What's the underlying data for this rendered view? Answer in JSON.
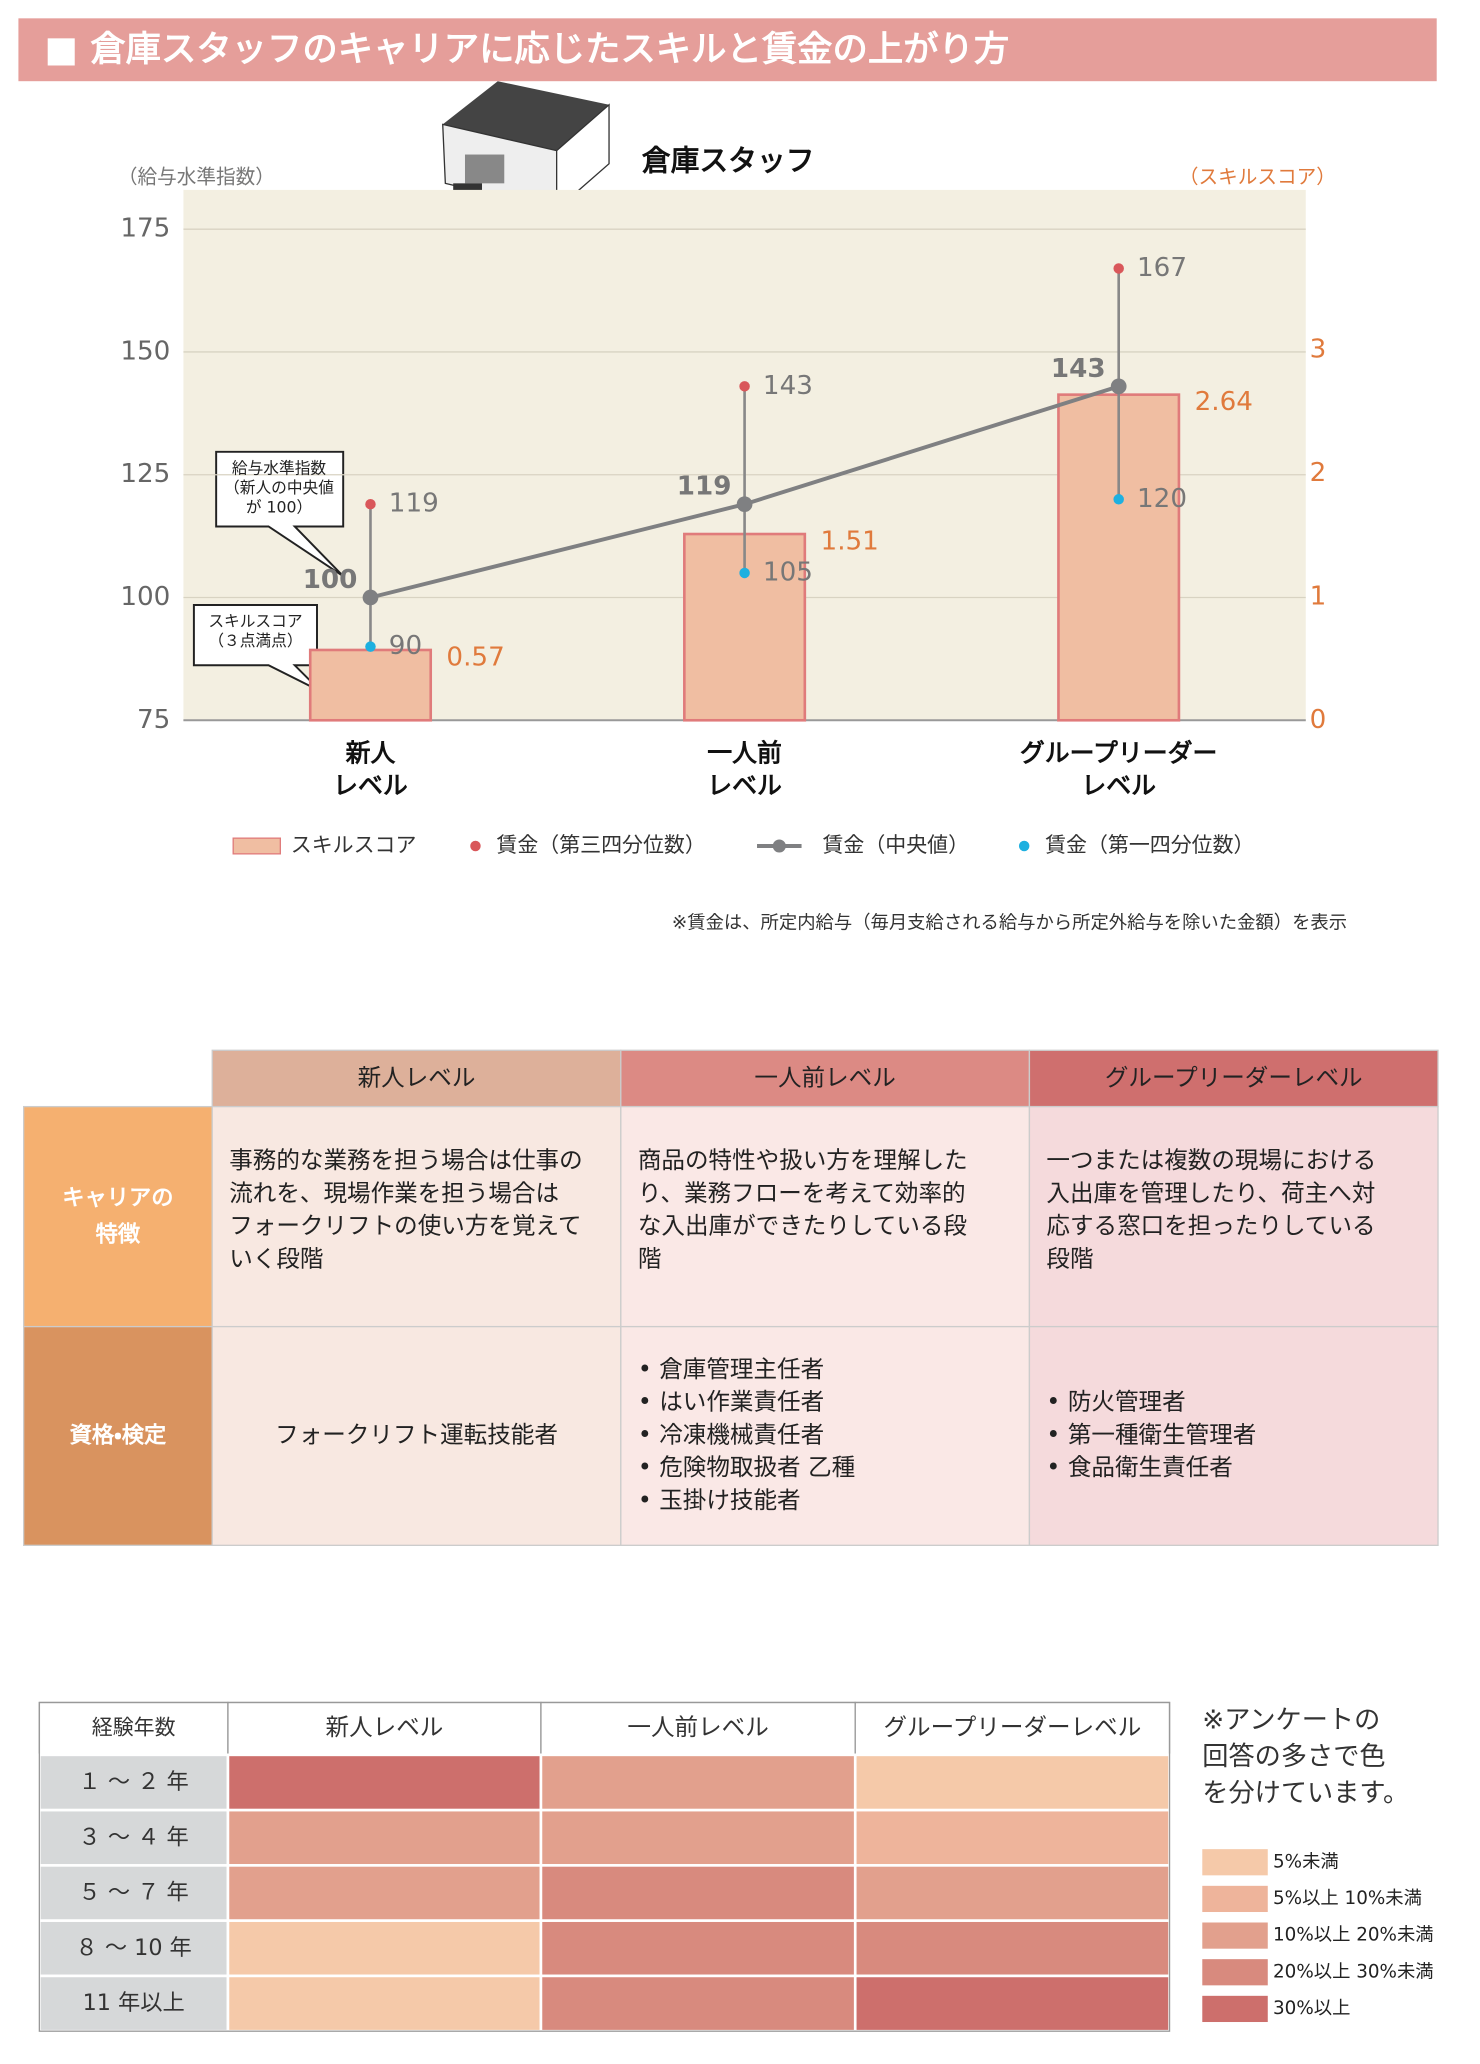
{
  "header": {
    "title": "■ 倉庫スタッフのキャリアに応じたスキルと賃金の上がり方"
  },
  "chart_data": {
    "type": "range_combo",
    "title": "倉庫スタッフ",
    "y_label": "（給与水準指数）",
    "y2_label": "（スキルスコア）",
    "categories": [
      [
        "新人",
        "レベル"
      ],
      [
        "一人前",
        "レベル"
      ],
      [
        "グループリーダー",
        "レベル"
      ]
    ],
    "series": [
      {
        "name": "スキルスコア",
        "kind": "bar",
        "axis": "y2",
        "color": "#f0bea2",
        "values": [
          0.57,
          1.51,
          2.64
        ]
      },
      {
        "name": "賃金（第三四分位数）",
        "kind": "dot",
        "color": "#d9575a",
        "values": [
          119,
          143,
          167
        ]
      },
      {
        "name": "賃金（中央値）",
        "kind": "line",
        "color": "#7f8082",
        "values": [
          100,
          119,
          143
        ]
      },
      {
        "name": "賃金（第一四分位数）",
        "kind": "dot",
        "color": "#1eb0e0",
        "values": [
          90,
          105,
          120
        ]
      }
    ],
    "ylim": [
      75,
      183
    ],
    "yticks": [
      75,
      100,
      125,
      150,
      175
    ],
    "y2lim": [
      0,
      4.3
    ],
    "y2ticks": [
      0,
      1,
      2,
      3
    ],
    "grid": true,
    "annotations": [
      [
        "給与水準指数",
        "（新人の中央値",
        "が 100）"
      ],
      [
        "スキルスコア",
        "（３点満点）"
      ]
    ]
  },
  "note": "※賃金は、所定内給与（毎月支給される給与から所定外給与を除いた金額）を表示",
  "table": {
    "columns": [
      "新人レベル",
      "一人前レベル",
      "グループリーダーレベル"
    ],
    "rows": [
      {
        "header": [
          "キャリアの",
          "特徴"
        ],
        "cells": [
          [
            "事務的な業務を担う場合は仕事の",
            "流れを、現場作業を担う場合は",
            "フォークリフトの使い方を覚えて",
            "いく段階"
          ],
          [
            "商品の特性や扱い方を理解した",
            "り、業務フローを考えて効率的",
            "な入出庫ができたりしている段",
            "階"
          ],
          [
            "一つまたは複数の現場における",
            "入出庫を管理したり、荷主へ対",
            "応する窓口を担ったりしている",
            "段階"
          ]
        ]
      },
      {
        "header": [
          "資格・検定"
        ],
        "cells": [
          [
            "フォークリフト運転技能者"
          ],
          [
            "• 倉庫管理主任者",
            "• はい作業責任者",
            "• 冷凍機械責任者",
            "• 危険物取扱者 乙種",
            "• 玉掛け技能者"
          ],
          [
            "• 防火管理者",
            "• 第一種衛生管理者",
            "• 食品衛生責任者"
          ]
        ]
      }
    ]
  },
  "heatmap": {
    "corner": "経験年数",
    "columns": [
      "新人レベル",
      "一人前レベル",
      "グループリーダーレベル"
    ],
    "rows": [
      {
        "label": "１ ～ ２ 年",
        "levels": [
          4,
          2,
          0
        ]
      },
      {
        "label": "３ ～ ４ 年",
        "levels": [
          2,
          2,
          1
        ]
      },
      {
        "label": "５ ～ ７ 年",
        "levels": [
          2,
          3,
          2
        ]
      },
      {
        "label": "８ ～ 10 年",
        "levels": [
          0,
          3,
          3
        ]
      },
      {
        "label": "11 年以上",
        "levels": [
          0,
          3,
          4
        ]
      }
    ],
    "note": [
      "※アンケートの",
      "回答の多さで色",
      "を分けています。"
    ],
    "legend": [
      {
        "label": "5%未満",
        "color": "#f5c9a9"
      },
      {
        "label": "5%以上 10%未満",
        "color": "#eeb49b"
      },
      {
        "label": "10%以上 20%未満",
        "color": "#e2a08d"
      },
      {
        "label": "20%以上 30%未満",
        "color": "#d88a7e"
      },
      {
        "label": "30%以上",
        "color": "#cd6f6c"
      }
    ]
  }
}
